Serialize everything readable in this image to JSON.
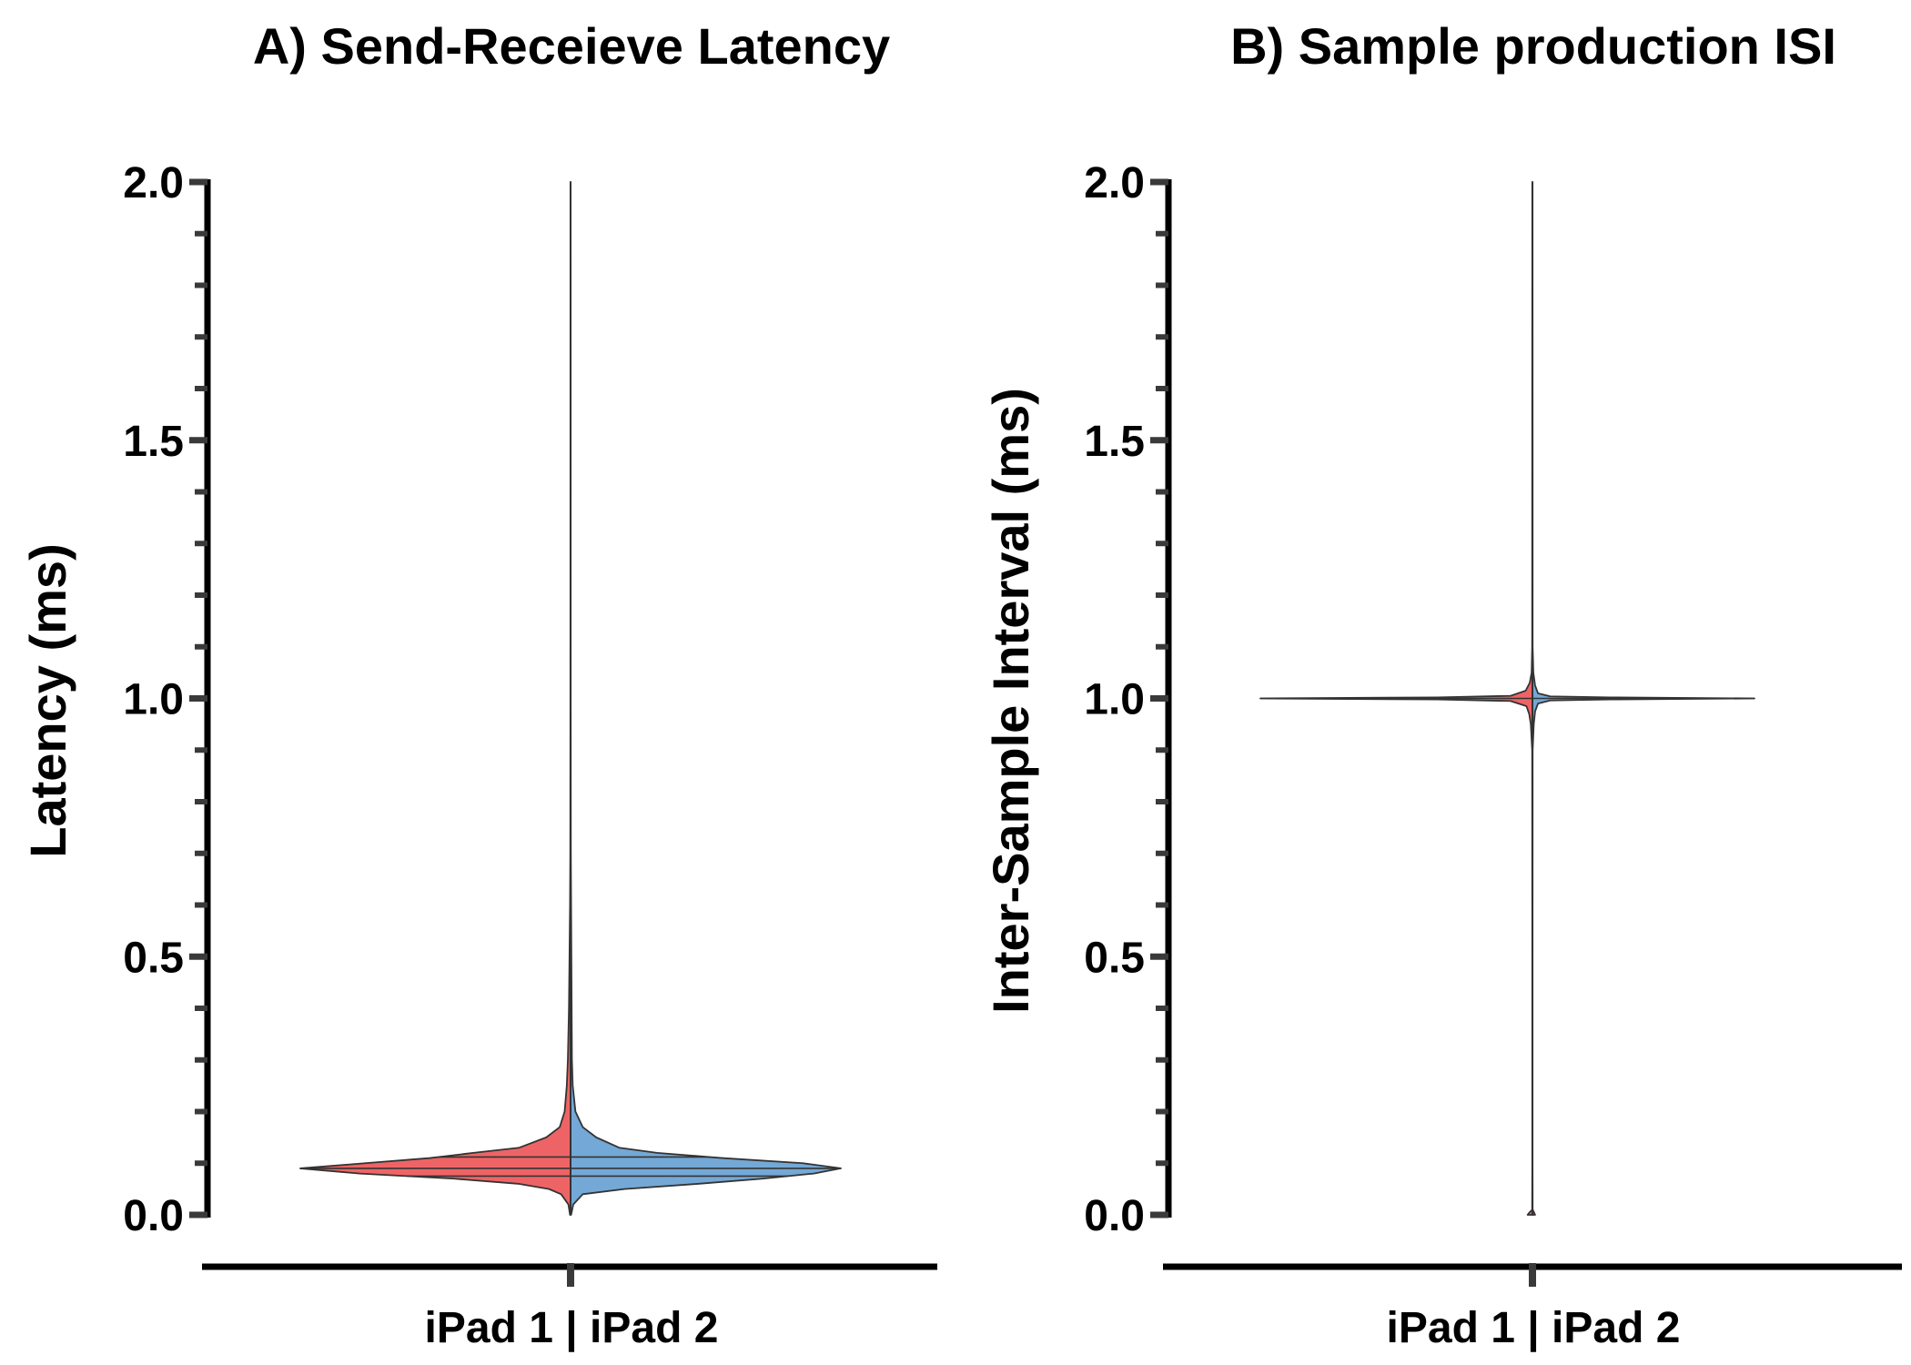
{
  "chart_data": [
    {
      "type": "violin",
      "title": "A) Send-Receieve Latency",
      "ylabel": "Latency (ms)",
      "xlabel": "iPad 1 | iPad 2",
      "ylim": [
        0.0,
        2.0
      ],
      "yticks": [
        "0.0",
        "0.5",
        "1.0",
        "1.5",
        "2.0"
      ],
      "ytick_values": [
        0.0,
        0.5,
        1.0,
        1.5,
        2.0
      ],
      "minor_tick_step": 0.1,
      "split": true,
      "halves": [
        {
          "name": "iPad 1",
          "side": "left",
          "color": "#ee6466"
        },
        {
          "name": "iPad 2",
          "side": "right",
          "color": "#74a8d6"
        }
      ],
      "mode": 0.09,
      "quartiles": [
        0.075,
        0.09,
        0.112
      ],
      "range": [
        0.0,
        2.0
      ],
      "density_left": [
        [
          0.0,
          0.002
        ],
        [
          0.02,
          0.008
        ],
        [
          0.04,
          0.035
        ],
        [
          0.05,
          0.08
        ],
        [
          0.06,
          0.19
        ],
        [
          0.07,
          0.43
        ],
        [
          0.08,
          0.78
        ],
        [
          0.09,
          1.0
        ],
        [
          0.1,
          0.76
        ],
        [
          0.11,
          0.52
        ],
        [
          0.12,
          0.36
        ],
        [
          0.13,
          0.19
        ],
        [
          0.15,
          0.09
        ],
        [
          0.17,
          0.04
        ],
        [
          0.2,
          0.022
        ],
        [
          0.25,
          0.014
        ],
        [
          0.3,
          0.01
        ],
        [
          0.4,
          0.006
        ],
        [
          0.5,
          0.004
        ],
        [
          0.6,
          0.002
        ],
        [
          0.7,
          0.001
        ],
        [
          1.0,
          0.0006
        ],
        [
          2.0,
          0.0004
        ]
      ],
      "density_right": [
        [
          0.0,
          0.002
        ],
        [
          0.02,
          0.01
        ],
        [
          0.04,
          0.045
        ],
        [
          0.05,
          0.2
        ],
        [
          0.06,
          0.47
        ],
        [
          0.07,
          0.71
        ],
        [
          0.08,
          0.9
        ],
        [
          0.09,
          1.0
        ],
        [
          0.1,
          0.86
        ],
        [
          0.11,
          0.56
        ],
        [
          0.12,
          0.32
        ],
        [
          0.13,
          0.18
        ],
        [
          0.15,
          0.095
        ],
        [
          0.17,
          0.045
        ],
        [
          0.2,
          0.018
        ],
        [
          0.25,
          0.008
        ],
        [
          0.3,
          0.005
        ],
        [
          0.4,
          0.004
        ],
        [
          0.5,
          0.003
        ],
        [
          0.6,
          0.002
        ],
        [
          0.7,
          0.001
        ],
        [
          1.0,
          0.0006
        ],
        [
          2.0,
          0.0004
        ]
      ],
      "max_left_ms_ratio": 0.905,
      "max_right_ms_ratio": 0.925
    },
    {
      "type": "violin",
      "title": "B) Sample production ISI",
      "ylabel": "Inter-Sample Interval (ms)",
      "xlabel": "iPad 1 | iPad 2",
      "ylim": [
        0.0,
        2.0
      ],
      "yticks": [
        "0.0",
        "0.5",
        "1.0",
        "1.5",
        "2.0"
      ],
      "ytick_values": [
        0.0,
        0.5,
        1.0,
        1.5,
        2.0
      ],
      "minor_tick_step": 0.1,
      "split": true,
      "halves": [
        {
          "name": "iPad 1",
          "side": "left",
          "color": "#ee6466"
        },
        {
          "name": "iPad 2",
          "side": "right",
          "color": "#74a8d6"
        }
      ],
      "mode": 1.0,
      "quartiles": [
        1.0,
        1.0,
        1.0
      ],
      "range": [
        0.0,
        2.0
      ],
      "density_left": [
        [
          0.0,
          0.018
        ],
        [
          0.004,
          0.012
        ],
        [
          0.01,
          0.001
        ],
        [
          0.1,
          0.0006
        ],
        [
          0.5,
          0.0006
        ],
        [
          0.9,
          0.001
        ],
        [
          0.95,
          0.006
        ],
        [
          0.97,
          0.012
        ],
        [
          0.985,
          0.022
        ],
        [
          0.995,
          0.08
        ],
        [
          0.998,
          0.35
        ],
        [
          1.0,
          1.0
        ],
        [
          1.002,
          0.35
        ],
        [
          1.005,
          0.08
        ],
        [
          1.015,
          0.025
        ],
        [
          1.03,
          0.01
        ],
        [
          1.05,
          0.003
        ],
        [
          1.1,
          0.001
        ],
        [
          2.0,
          0.0006
        ]
      ],
      "density_right": [
        [
          0.0,
          0.012
        ],
        [
          0.004,
          0.008
        ],
        [
          0.01,
          0.001
        ],
        [
          0.1,
          0.0006
        ],
        [
          0.5,
          0.0006
        ],
        [
          0.9,
          0.001
        ],
        [
          0.95,
          0.006
        ],
        [
          0.975,
          0.012
        ],
        [
          0.99,
          0.025
        ],
        [
          0.996,
          0.08
        ],
        [
          0.998,
          0.35
        ],
        [
          1.0,
          1.0
        ],
        [
          1.002,
          0.35
        ],
        [
          1.004,
          0.08
        ],
        [
          1.01,
          0.025
        ],
        [
          1.025,
          0.012
        ],
        [
          1.05,
          0.004
        ],
        [
          1.1,
          0.001
        ],
        [
          2.0,
          0.0006
        ]
      ],
      "max_left_ms_ratio": 0.925,
      "max_right_ms_ratio": 0.74
    }
  ]
}
